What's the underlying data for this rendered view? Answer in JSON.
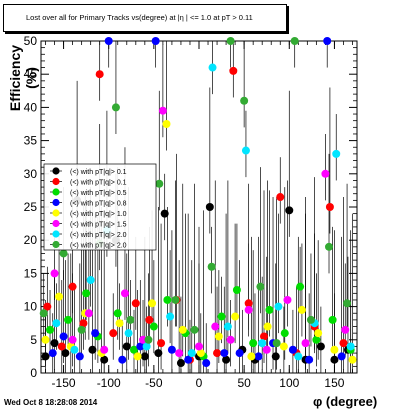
{
  "title": "Lost over all for Primary Tracks vs(degree) at |η | <= 1.0 at pT > 0.11",
  "timestamp": "Wed Oct  8 18:28:08 2014",
  "chart_data": {
    "type": "scatter",
    "xlabel": "φ (degree)",
    "ylabel": "Efficiency (%)",
    "xlim": [
      -175,
      175
    ],
    "ylim": [
      0,
      50
    ],
    "x_ticks": [
      "-150",
      "-100",
      "-50",
      "0",
      "50",
      "100",
      "150"
    ],
    "x_tick_values": [
      -150,
      -100,
      -50,
      0,
      50,
      100,
      150
    ],
    "y_ticks": [
      "0",
      "5",
      "10",
      "15",
      "20",
      "25",
      "30",
      "35",
      "40",
      "45",
      "50"
    ],
    "y_tick_values": [
      0,
      5,
      10,
      15,
      20,
      25,
      30,
      35,
      40,
      45,
      50
    ],
    "legend_position": "left",
    "series": [
      {
        "name": "(<) with pT|q|> 0.1",
        "color": "#000000",
        "x": [
          -170,
          -160,
          -148,
          -135,
          -118,
          -105,
          -92,
          -80,
          -60,
          -45,
          -38,
          -20,
          0,
          12,
          30,
          48,
          62,
          85,
          100,
          118,
          135,
          150,
          165
        ],
        "y": [
          2.5,
          4.5,
          3.0,
          26.0,
          3.5,
          2.0,
          20.0,
          4.0,
          2.5,
          3.0,
          24.0,
          1.5,
          2.5,
          25.0,
          2.0,
          3.5,
          2.0,
          2.5,
          24.5,
          2.0,
          4.0,
          2.0,
          3.5
        ]
      },
      {
        "name": "(<) with pT|q|> 0.1",
        "color": "#ff0000",
        "x": [
          -168,
          -152,
          -140,
          -128,
          -110,
          -95,
          -70,
          -55,
          -42,
          -25,
          -10,
          20,
          38,
          55,
          72,
          90,
          108,
          128,
          145,
          160
        ],
        "y": [
          10.0,
          4.0,
          13.0,
          7.5,
          45.0,
          6.0,
          10.5,
          8.0,
          4.5,
          11.0,
          2.0,
          3.0,
          45.5,
          10.5,
          5.5,
          26.5,
          3.0,
          7.0,
          25.0,
          4.5
        ]
      },
      {
        "name": "(<) with pT|q|> 0.5",
        "color": "#00dd00",
        "x": [
          -165,
          -145,
          -125,
          -112,
          -90,
          -72,
          -50,
          -35,
          -15,
          5,
          25,
          42,
          60,
          78,
          95,
          112,
          130,
          148,
          168
        ],
        "y": [
          6.5,
          8.0,
          12.0,
          5.5,
          9.0,
          3.5,
          7.0,
          11.0,
          6.0,
          2.5,
          8.5,
          12.5,
          4.5,
          9.5,
          6.0,
          13.0,
          5.0,
          8.0,
          3.5
        ]
      },
      {
        "name": "(<) with pT|q|> 0.8",
        "color": "#0000ff",
        "x": [
          -162,
          -150,
          -132,
          -115,
          -100,
          -85,
          -65,
          -48,
          -30,
          -12,
          8,
          28,
          45,
          66,
          82,
          104,
          122,
          142,
          158
        ],
        "y": [
          3.0,
          5.5,
          2.5,
          6.0,
          50.0,
          2.0,
          4.0,
          50.0,
          3.5,
          2.0,
          1.5,
          3.0,
          3.0,
          2.5,
          4.5,
          3.5,
          2.0,
          50.0,
          2.5
        ]
      },
      {
        "name": "(<) with pT|q|> 1.0",
        "color": "#ffff00",
        "x": [
          -170,
          -155,
          -142,
          -126,
          -108,
          -88,
          -68,
          -52,
          -36,
          -18,
          2,
          22,
          40,
          58,
          76,
          94,
          114,
          132,
          150,
          170
        ],
        "y": [
          5.0,
          11.5,
          4.0,
          9.0,
          3.0,
          7.5,
          2.5,
          10.5,
          37.5,
          6.5,
          3.0,
          5.5,
          8.5,
          2.5,
          7.0,
          4.0,
          9.5,
          6.0,
          3.5,
          2.0
        ]
      },
      {
        "name": "(<) with pT|q|> 1.5",
        "color": "#ff00ff",
        "x": [
          -160,
          -140,
          -122,
          -105,
          -82,
          -62,
          -40,
          -22,
          0,
          18,
          35,
          55,
          75,
          98,
          118,
          140,
          162
        ],
        "y": [
          15.0,
          5.0,
          9.0,
          3.5,
          12.0,
          5.0,
          39.5,
          3.0,
          4.0,
          7.0,
          5.0,
          9.5,
          3.5,
          11.0,
          4.5,
          30.0,
          6.5
        ]
      },
      {
        "name": "(<) with pT|q|> 2.0",
        "color": "#00e5ff",
        "x": [
          -158,
          -138,
          -120,
          -102,
          -78,
          -58,
          -32,
          -8,
          15,
          32,
          52,
          70,
          88,
          110,
          128,
          152,
          168
        ],
        "y": [
          7.5,
          3.5,
          14.0,
          21.5,
          6.0,
          4.0,
          8.5,
          3.0,
          46.0,
          7.0,
          33.5,
          4.5,
          10.0,
          2.5,
          7.5,
          33.0,
          4.0
        ]
      },
      {
        "name": "(<) with pT|q|> 2.0",
        "color": "#33aa33",
        "x": [
          -172,
          -150,
          -130,
          -110,
          -92,
          -76,
          -56,
          -44,
          -26,
          -5,
          14,
          35,
          50,
          68,
          86,
          106,
          124,
          144,
          164
        ],
        "y": [
          9.0,
          18.0,
          6.5,
          19.5,
          40.0,
          8.0,
          5.0,
          28.5,
          11.0,
          6.5,
          16.0,
          50.0,
          41.0,
          13.0,
          4.5,
          50.0,
          8.0,
          19.0,
          10.5
        ]
      }
    ]
  }
}
